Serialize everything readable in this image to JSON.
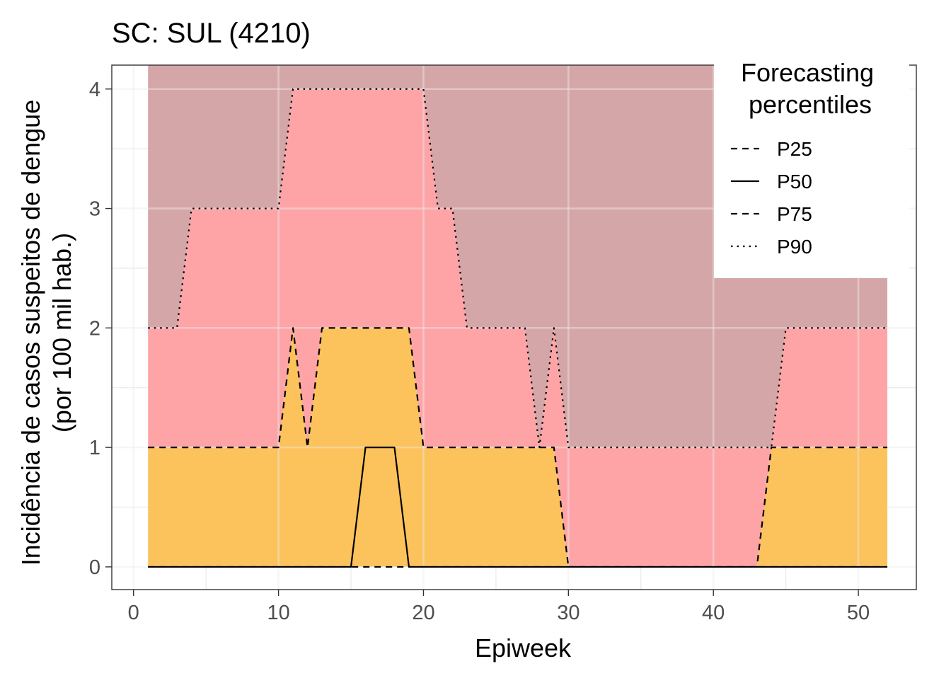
{
  "chart_data": {
    "type": "area",
    "title": "SC: SUL (4210)",
    "xlabel": "Epiweek",
    "ylabel_lines": [
      "Incidência de casos suspeitos de dengue",
      "(por 100 mil hab.)"
    ],
    "xlim": [
      -1.5,
      54
    ],
    "ylim": [
      -0.19,
      4.2
    ],
    "x_ticks": [
      0,
      10,
      20,
      30,
      40,
      50
    ],
    "y_ticks": [
      0,
      1,
      2,
      3,
      4
    ],
    "grid": true,
    "legend": {
      "title_lines": [
        "Forecasting",
        "percentiles"
      ],
      "position": "top-right",
      "entries": [
        {
          "label": "P25",
          "dash": "dashed"
        },
        {
          "label": "P50",
          "dash": "solid"
        },
        {
          "label": "P75",
          "dash": "dashed"
        },
        {
          "label": "P90",
          "dash": "dotted"
        }
      ]
    },
    "colors": {
      "band_low": "#fcc25b",
      "band_mid": "#fea4a6",
      "band_high": "#d5a6a8",
      "line": "#000000",
      "grid": "#ebebeb",
      "axis": "#333333",
      "tick_label": "#4d4d4d"
    },
    "x": [
      1,
      2,
      3,
      4,
      5,
      6,
      7,
      8,
      9,
      10,
      11,
      12,
      13,
      14,
      15,
      16,
      17,
      18,
      19,
      20,
      21,
      22,
      23,
      24,
      25,
      26,
      27,
      28,
      29,
      30,
      31,
      32,
      33,
      34,
      35,
      36,
      37,
      38,
      39,
      40,
      41,
      42,
      43,
      44,
      45,
      46,
      47,
      48,
      49,
      50,
      51,
      52
    ],
    "upper_band_top": 4.2,
    "series": [
      {
        "name": "P25",
        "values": [
          0,
          0,
          0,
          0,
          0,
          0,
          0,
          0,
          0,
          0,
          0,
          0,
          0,
          0,
          0,
          0,
          0,
          0,
          0,
          0,
          0,
          0,
          0,
          0,
          0,
          0,
          0,
          0,
          0,
          0,
          0,
          0,
          0,
          0,
          0,
          0,
          0,
          0,
          0,
          0,
          0,
          0,
          0,
          0,
          0,
          0,
          0,
          0,
          0,
          0,
          0,
          0
        ]
      },
      {
        "name": "P50",
        "values": [
          0,
          0,
          0,
          0,
          0,
          0,
          0,
          0,
          0,
          0,
          0,
          0,
          0,
          0,
          0,
          1,
          1,
          1,
          0,
          0,
          0,
          0,
          0,
          0,
          0,
          0,
          0,
          0,
          0,
          0,
          0,
          0,
          0,
          0,
          0,
          0,
          0,
          0,
          0,
          0,
          0,
          0,
          0,
          0,
          0,
          0,
          0,
          0,
          0,
          0,
          0,
          0
        ]
      },
      {
        "name": "P75",
        "values": [
          1,
          1,
          1,
          1,
          1,
          1,
          1,
          1,
          1,
          1,
          2,
          1,
          2,
          2,
          2,
          2,
          2,
          2,
          2,
          1,
          1,
          1,
          1,
          1,
          1,
          1,
          1,
          1,
          1,
          0,
          0,
          0,
          0,
          0,
          0,
          0,
          0,
          0,
          0,
          0,
          0,
          0,
          0,
          1,
          1,
          1,
          1,
          1,
          1,
          1,
          1,
          1
        ]
      },
      {
        "name": "P90",
        "values": [
          2,
          2,
          2,
          3,
          3,
          3,
          3,
          3,
          3,
          3,
          4,
          4,
          4,
          4,
          4,
          4,
          4,
          4,
          4,
          4,
          3,
          3,
          2,
          2,
          2,
          2,
          2,
          1,
          2,
          1,
          1,
          1,
          1,
          1,
          1,
          1,
          1,
          1,
          1,
          1,
          1,
          1,
          1,
          1,
          2,
          2,
          2,
          2,
          2,
          2,
          2,
          2
        ]
      }
    ]
  }
}
